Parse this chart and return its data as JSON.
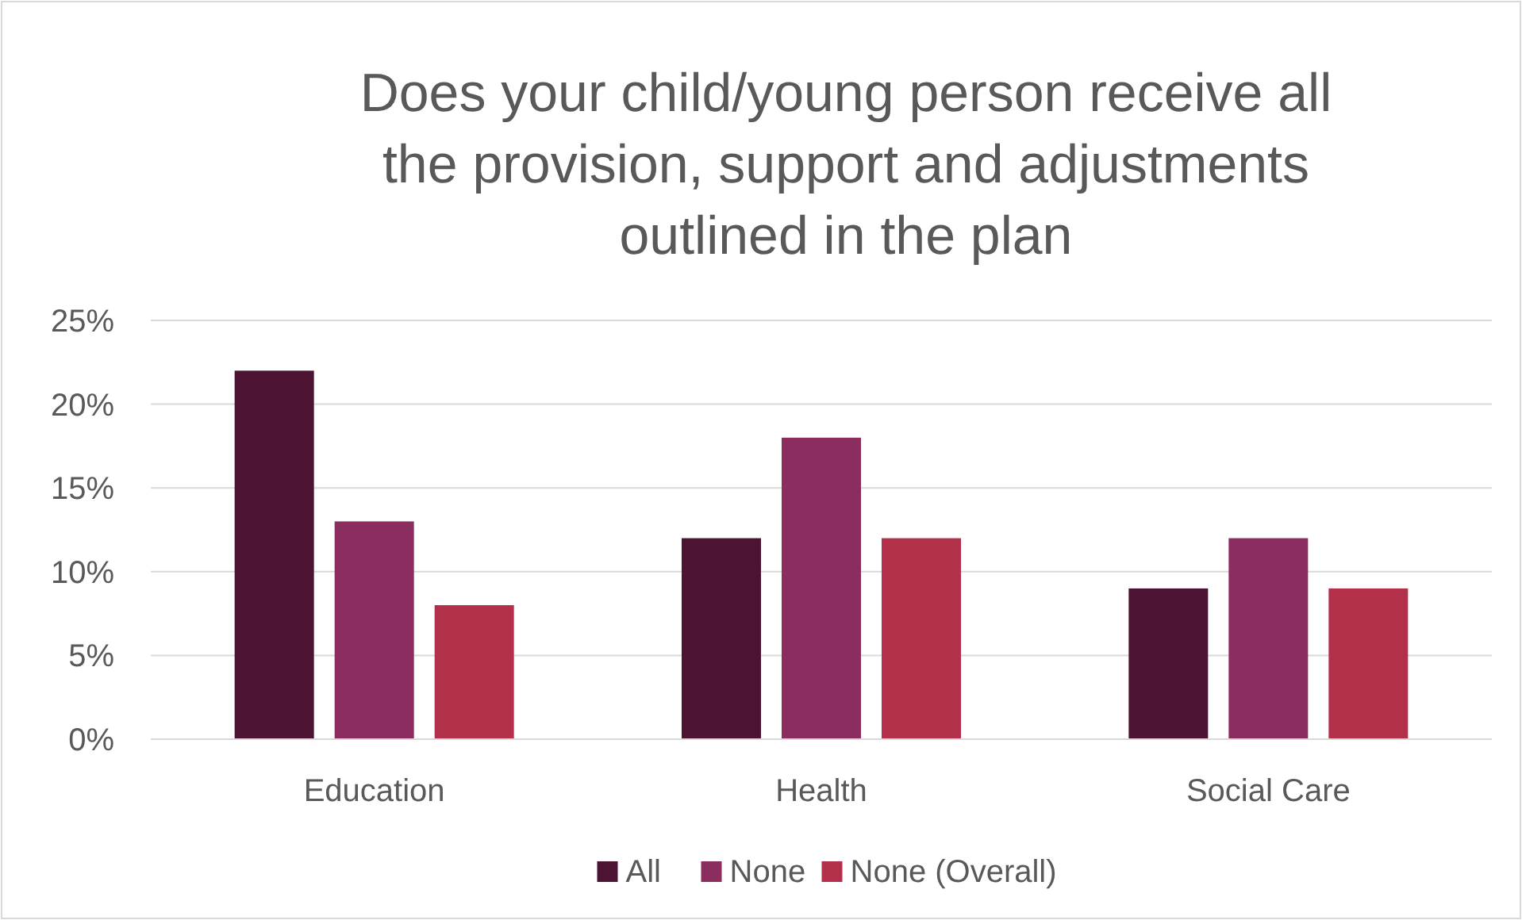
{
  "chart_data": {
    "type": "bar",
    "title": "Does your child/young person receive all the provision, support and adjustments outlined in the plan",
    "categories": [
      "Education",
      "Health",
      "Social Care"
    ],
    "series": [
      {
        "name": "All",
        "color": "#4c1432",
        "values": [
          22,
          12,
          9
        ]
      },
      {
        "name": "None",
        "color": "#8b2d5f",
        "values": [
          13,
          18,
          12
        ]
      },
      {
        "name": "None (Overall)",
        "color": "#b2304a",
        "values": [
          8,
          12,
          9
        ]
      }
    ],
    "ylim": [
      0,
      25
    ],
    "yticks": [
      {
        "value": 0,
        "label": "0%"
      },
      {
        "value": 5,
        "label": "5%"
      },
      {
        "value": 10,
        "label": "10%"
      },
      {
        "value": 15,
        "label": "15%"
      },
      {
        "value": 20,
        "label": "20%"
      },
      {
        "value": 25,
        "label": "25%"
      }
    ],
    "grid": true,
    "legend": "bottom"
  }
}
